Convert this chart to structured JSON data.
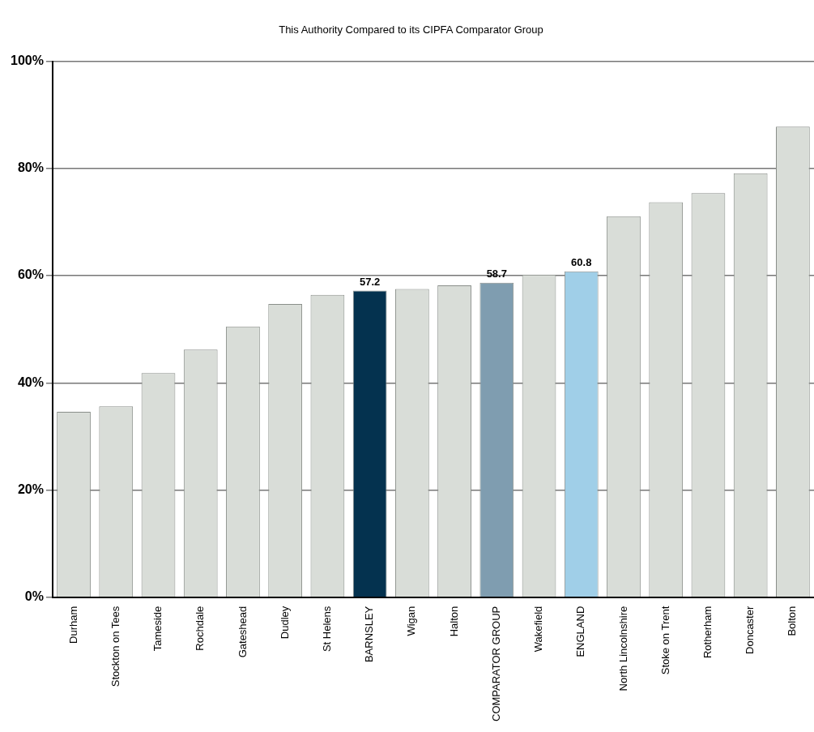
{
  "chart_data": {
    "type": "bar",
    "title": "This Authority Compared to its CIPFA Comparator Group",
    "categories": [
      "Durham",
      "Stockton on Tees",
      "Tameside",
      "Rochdale",
      "Gateshead",
      "Dudley",
      "St Helens",
      "BARNSLEY",
      "Wigan",
      "Halton",
      "COMPARATOR GROUP",
      "Wakefield",
      "ENGLAND",
      "North Lincolnshire",
      "Stoke on Trent",
      "Rotherham",
      "Doncaster",
      "Bolton"
    ],
    "values": [
      34.6,
      35.6,
      41.8,
      46.2,
      50.5,
      54.7,
      56.4,
      57.2,
      57.5,
      58.2,
      58.7,
      60.2,
      60.8,
      71.1,
      73.7,
      75.4,
      79.1,
      87.8
    ],
    "colors": [
      "#d9ddd8",
      "#d9ddd8",
      "#d9ddd8",
      "#d9ddd8",
      "#d9ddd8",
      "#d9ddd8",
      "#d9ddd8",
      "#04324f",
      "#d9ddd8",
      "#d9ddd8",
      "#7f9db0",
      "#d9ddd8",
      "#a0cfe8",
      "#d9ddd8",
      "#d9ddd8",
      "#d9ddd8",
      "#d9ddd8",
      "#d9ddd8"
    ],
    "value_labels": [
      null,
      null,
      null,
      null,
      null,
      null,
      null,
      "57.2",
      null,
      null,
      "58.7",
      null,
      "60.8",
      null,
      null,
      null,
      null,
      null
    ],
    "ylim": [
      0,
      100
    ],
    "yticks": [
      {
        "value": 0,
        "label": "0%"
      },
      {
        "value": 20,
        "label": "20%"
      },
      {
        "value": 40,
        "label": "40%"
      },
      {
        "value": 60,
        "label": "60%"
      },
      {
        "value": 80,
        "label": "80%"
      },
      {
        "value": 100,
        "label": "100%"
      }
    ],
    "grid": "y",
    "legend": false
  }
}
